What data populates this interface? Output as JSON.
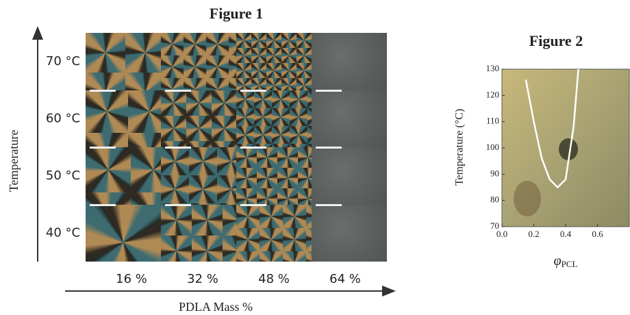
{
  "figure1": {
    "title": "Figure 1",
    "y_axis_label": "Temperature",
    "x_axis_label": "PDLA Mass %",
    "rows": [
      "70 °C",
      "60 °C",
      "50 °C",
      "40 °C"
    ],
    "columns": [
      "16 %",
      "32 %",
      "48 %",
      "64 %"
    ]
  },
  "figure2": {
    "title": "Figure 2",
    "y_axis_label": "Temperature (°C)",
    "x_axis_label": {
      "symbol": "φ",
      "subscript": "PCL"
    },
    "xlim": [
      0,
      0.8
    ],
    "ylim": [
      70,
      130
    ],
    "xticks": [
      {
        "value": 0,
        "label": "0.0"
      },
      {
        "value": 0.2,
        "label": "0.2"
      },
      {
        "value": 0.4,
        "label": "0.4"
      },
      {
        "value": 0.6,
        "label": "0.6"
      }
    ],
    "yticks": [
      70,
      80,
      90,
      100,
      110,
      120,
      130
    ],
    "curve": {
      "x": [
        0.15,
        0.2,
        0.25,
        0.3,
        0.35,
        0.4,
        0.45,
        0.48
      ],
      "y": [
        126,
        110,
        96,
        88,
        85,
        88,
        108,
        130
      ]
    }
  }
}
